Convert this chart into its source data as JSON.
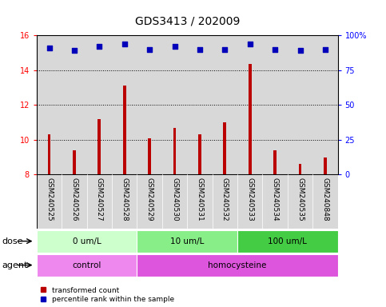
{
  "title": "GDS3413 / 202009",
  "samples": [
    "GSM240525",
    "GSM240526",
    "GSM240527",
    "GSM240528",
    "GSM240529",
    "GSM240530",
    "GSM240531",
    "GSM240532",
    "GSM240533",
    "GSM240534",
    "GSM240535",
    "GSM240848"
  ],
  "red_values": [
    10.3,
    9.4,
    11.2,
    13.1,
    10.1,
    10.7,
    10.3,
    11.0,
    14.35,
    9.4,
    8.6,
    9.0
  ],
  "blue_pct": [
    91,
    89,
    92,
    94,
    90,
    92,
    90,
    90,
    94,
    90,
    89,
    90
  ],
  "ylim_left": [
    8,
    16
  ],
  "ylim_right": [
    0,
    100
  ],
  "yticks_left": [
    8,
    10,
    12,
    14,
    16
  ],
  "yticks_right": [
    0,
    25,
    50,
    75,
    100
  ],
  "ytick_labels_right": [
    "0%",
    "25%",
    "50%",
    "75%",
    "100%"
  ],
  "bar_color": "#bb0000",
  "dot_color": "#0000bb",
  "dose_groups": [
    {
      "label": "0 um/L",
      "start": 0,
      "end": 4,
      "color": "#ccffcc"
    },
    {
      "label": "10 um/L",
      "start": 4,
      "end": 8,
      "color": "#88ee88"
    },
    {
      "label": "100 um/L",
      "start": 8,
      "end": 12,
      "color": "#44cc44"
    }
  ],
  "agent_groups": [
    {
      "label": "control",
      "start": 0,
      "end": 4,
      "color": "#ee88ee"
    },
    {
      "label": "homocysteine",
      "start": 4,
      "end": 12,
      "color": "#dd55dd"
    }
  ],
  "legend_red_label": "transformed count",
  "legend_blue_label": "percentile rank within the sample",
  "dose_label": "dose",
  "agent_label": "agent",
  "background_color": "#ffffff",
  "plot_bg_color": "#d8d8d8",
  "title_fontsize": 10,
  "tick_fontsize": 7,
  "annot_fontsize": 8,
  "bar_width": 0.12,
  "dot_size": 22
}
